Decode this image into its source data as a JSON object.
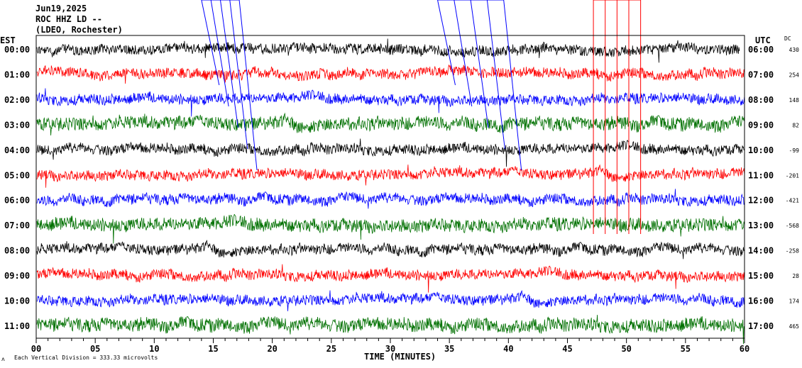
{
  "chart_data": {
    "type": "line",
    "title_lines": [
      "Jun19,2025",
      "ROC HHZ LD --",
      "(LDEO, Rochester)"
    ],
    "left_axis_label": "EST",
    "right_axis_label": "UTC",
    "dc_label": "DC",
    "xlabel": "TIME (MINUTES)",
    "xlim": [
      0,
      60
    ],
    "x_ticks": [
      "00",
      "05",
      "10",
      "15",
      "20",
      "25",
      "30",
      "35",
      "40",
      "45",
      "50",
      "55",
      "60"
    ],
    "footer": "Each Vertical Division =  333.33 microvolts",
    "footer_mark": "ʌ",
    "trace_colors": [
      "#000000",
      "#ff0000",
      "#0000ff",
      "#007000"
    ],
    "rows": [
      {
        "est": "00:00",
        "utc": "06:00",
        "dc": "430"
      },
      {
        "est": "01:00",
        "utc": "07:00",
        "dc": "254"
      },
      {
        "est": "02:00",
        "utc": "08:00",
        "dc": "148"
      },
      {
        "est": "03:00",
        "utc": "09:00",
        "dc": "82"
      },
      {
        "est": "04:00",
        "utc": "10:00",
        "dc": "-99"
      },
      {
        "est": "05:00",
        "utc": "11:00",
        "dc": "-201"
      },
      {
        "est": "06:00",
        "utc": "12:00",
        "dc": "-421"
      },
      {
        "est": "07:00",
        "utc": "13:00",
        "dc": "-568"
      },
      {
        "est": "08:00",
        "utc": "14:00",
        "dc": "-258"
      },
      {
        "est": "09:00",
        "utc": "15:00",
        "dc": "28"
      },
      {
        "est": "10:00",
        "utc": "16:00",
        "dc": "174"
      },
      {
        "est": "11:00",
        "utc": "17:00",
        "dc": "465"
      }
    ],
    "first_row_end_minute": 59
  }
}
